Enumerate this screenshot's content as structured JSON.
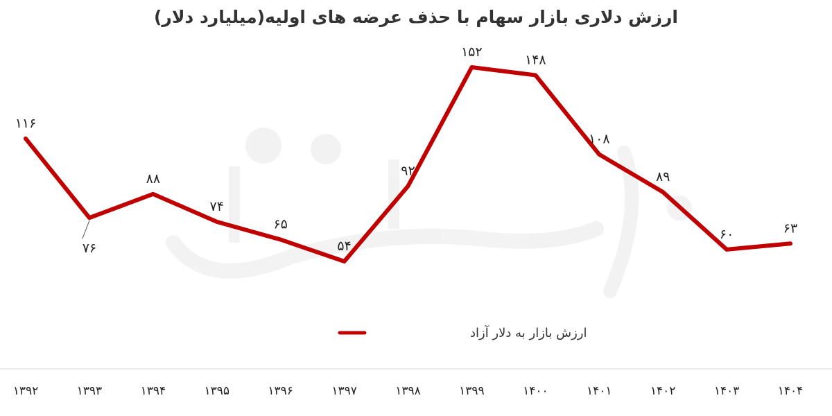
{
  "chart_data": {
    "type": "line",
    "title": "ارزش دلاری  بازار سهام با حذف عرضه های اولیه(میلیارد دلار)",
    "categories": [
      "۱۳۹۲",
      "۱۳۹۳",
      "۱۳۹۴",
      "۱۳۹۵",
      "۱۳۹۶",
      "۱۳۹۷",
      "۱۳۹۸",
      "۱۳۹۹",
      "۱۴۰۰",
      "۱۴۰۱",
      "۱۴۰۲",
      "۱۴۰۳",
      "۱۴۰۴"
    ],
    "series": [
      {
        "name": "ارزش بازار به دلار آزاد",
        "values": [
          116,
          76,
          88,
          74,
          65,
          54,
          92,
          152,
          148,
          108,
          89,
          60,
          63
        ],
        "labels": [
          "۱۱۶",
          "۷۶",
          "۸۸",
          "۷۴",
          "۶۵",
          "۵۴",
          "۹۲",
          "۱۵۲",
          "۱۴۸",
          "۱۰۸",
          "۸۹",
          "۶۰",
          "۶۳"
        ],
        "color": "#c00000"
      }
    ],
    "label_side": [
      "above",
      "below",
      "above",
      "above",
      "above",
      "above",
      "above",
      "above",
      "above",
      "above",
      "above",
      "above",
      "above"
    ],
    "xlabel": "",
    "ylabel": "",
    "ylim": [
      20,
      157
    ],
    "grid": false,
    "legend": "bottom-center",
    "watermark": "دنیای اقتصاد"
  }
}
